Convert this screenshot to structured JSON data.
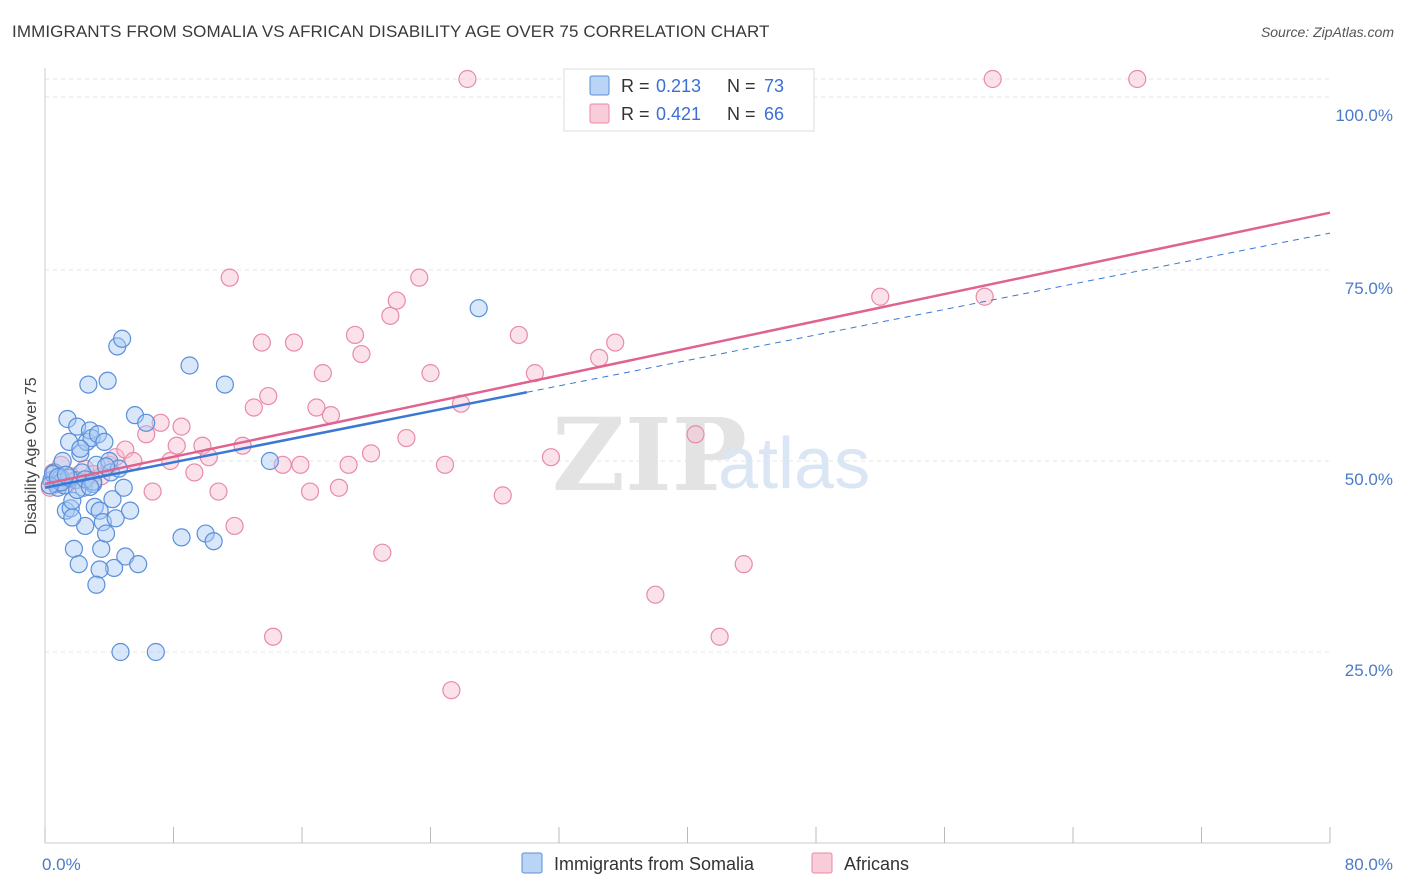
{
  "header": {
    "title": "IMMIGRANTS FROM SOMALIA VS AFRICAN DISABILITY AGE OVER 75 CORRELATION CHART",
    "source": "Source: ZipAtlas.com"
  },
  "watermark": {
    "zip": "ZIP",
    "atlas": "atlas"
  },
  "colors": {
    "somalia_fill": "#a9c9f3",
    "somalia_stroke": "#5b8fd9",
    "somalia_line": "#3b78d4",
    "africans_fill": "#f7bfd1",
    "africans_stroke": "#e88aa9",
    "africans_line": "#e0628f",
    "tick_text": "#4a7bc8",
    "grid": "#e4e4e4"
  },
  "legend": {
    "rows": [
      {
        "r_label": "R =",
        "r_value": "0.213",
        "n_label": "N =",
        "n_value": "73"
      },
      {
        "r_label": "R =",
        "r_value": "0.421",
        "n_label": "N =",
        "n_value": "66"
      }
    ]
  },
  "bottom_legend": [
    "Immigrants from Somalia",
    "Africans"
  ],
  "chart_data": {
    "type": "scatter",
    "title": "IMMIGRANTS FROM SOMALIA VS AFRICAN DISABILITY AGE OVER 75 CORRELATION CHART",
    "xlabel": "",
    "ylabel": "Disability Age Over 75",
    "xlim": [
      0,
      80
    ],
    "ylim": [
      0,
      100
    ],
    "x_tick_labels": [
      "0.0%",
      "80.0%"
    ],
    "y_ticks": [
      25,
      50,
      75,
      100
    ],
    "y_tick_labels": [
      "25.0%",
      "50.0%",
      "75.0%",
      "100.0%"
    ],
    "grid": true,
    "legend_position": "top-center",
    "series": [
      {
        "name": "Immigrants from Somalia",
        "r": 0.213,
        "n": 73,
        "trend": {
          "x": [
            0,
            30
          ],
          "y": [
            46.5,
            59.0
          ]
        },
        "points": [
          [
            0.4,
            47.5
          ],
          [
            0.6,
            48.5
          ],
          [
            0.7,
            47.0
          ],
          [
            0.8,
            46.5
          ],
          [
            0.9,
            48.0
          ],
          [
            1.0,
            47.8
          ],
          [
            1.1,
            50.0
          ],
          [
            1.2,
            46.8
          ],
          [
            1.3,
            43.5
          ],
          [
            1.4,
            55.5
          ],
          [
            1.5,
            52.5
          ],
          [
            1.6,
            43.8
          ],
          [
            1.7,
            44.8
          ],
          [
            1.8,
            38.5
          ],
          [
            1.9,
            47.5
          ],
          [
            2.0,
            54.5
          ],
          [
            2.1,
            36.5
          ],
          [
            2.2,
            51.0
          ],
          [
            2.3,
            48.5
          ],
          [
            2.4,
            46.5
          ],
          [
            2.5,
            41.5
          ],
          [
            2.6,
            52.5
          ],
          [
            2.7,
            60.0
          ],
          [
            2.8,
            54.0
          ],
          [
            2.9,
            53.0
          ],
          [
            3.0,
            47.0
          ],
          [
            3.1,
            44.0
          ],
          [
            3.2,
            49.5
          ],
          [
            3.3,
            53.5
          ],
          [
            3.4,
            43.5
          ],
          [
            3.5,
            38.5
          ],
          [
            3.6,
            42.0
          ],
          [
            3.7,
            52.5
          ],
          [
            3.8,
            40.5
          ],
          [
            3.9,
            60.5
          ],
          [
            4.0,
            50.0
          ],
          [
            4.1,
            48.5
          ],
          [
            4.2,
            45.0
          ],
          [
            4.3,
            36.0
          ],
          [
            4.4,
            42.5
          ],
          [
            4.5,
            65.0
          ],
          [
            4.6,
            49.0
          ],
          [
            4.7,
            25.0
          ],
          [
            4.8,
            66.0
          ],
          [
            4.9,
            46.5
          ],
          [
            5.0,
            37.5
          ],
          [
            5.3,
            43.5
          ],
          [
            5.6,
            56.0
          ],
          [
            5.8,
            36.5
          ],
          [
            6.3,
            55.0
          ],
          [
            6.9,
            25.0
          ],
          [
            8.5,
            40.0
          ],
          [
            9.0,
            62.5
          ],
          [
            10.0,
            40.5
          ],
          [
            10.5,
            39.5
          ],
          [
            11.2,
            60.0
          ],
          [
            14.0,
            50.0
          ],
          [
            27.0,
            70.0
          ],
          [
            0.5,
            48.3
          ],
          [
            1.0,
            47.2
          ],
          [
            1.5,
            47.8
          ],
          [
            2.0,
            46.2
          ],
          [
            2.5,
            47.6
          ],
          [
            3.0,
            47.3
          ],
          [
            0.3,
            46.8
          ],
          [
            0.8,
            47.9
          ],
          [
            1.3,
            48.2
          ],
          [
            2.2,
            51.6
          ],
          [
            3.4,
            35.8
          ],
          [
            3.2,
            33.8
          ],
          [
            2.8,
            46.6
          ],
          [
            1.7,
            42.6
          ],
          [
            3.8,
            49.3
          ]
        ]
      },
      {
        "name": "Africans",
        "r": 0.421,
        "n": 66,
        "trend": {
          "x": [
            0,
            80
          ],
          "y": [
            47.0,
            82.5
          ]
        },
        "points": [
          [
            0.3,
            46.5
          ],
          [
            0.5,
            48.5
          ],
          [
            0.8,
            47.0
          ],
          [
            1.0,
            49.5
          ],
          [
            1.3,
            46.8
          ],
          [
            1.6,
            48.0
          ],
          [
            2.0,
            47.5
          ],
          [
            2.5,
            49.0
          ],
          [
            3.0,
            48.3
          ],
          [
            3.5,
            48.0
          ],
          [
            4.0,
            49.5
          ],
          [
            4.4,
            50.5
          ],
          [
            5.0,
            51.5
          ],
          [
            5.5,
            50.0
          ],
          [
            6.3,
            53.5
          ],
          [
            6.7,
            46.0
          ],
          [
            7.2,
            55.0
          ],
          [
            7.8,
            50.0
          ],
          [
            8.2,
            52.0
          ],
          [
            8.5,
            54.5
          ],
          [
            9.3,
            48.5
          ],
          [
            9.8,
            52.0
          ],
          [
            10.2,
            50.5
          ],
          [
            10.8,
            46.0
          ],
          [
            11.5,
            74.0
          ],
          [
            11.8,
            41.5
          ],
          [
            12.3,
            52.0
          ],
          [
            13.0,
            57.0
          ],
          [
            13.5,
            65.5
          ],
          [
            13.9,
            58.5
          ],
          [
            14.2,
            27.0
          ],
          [
            14.8,
            49.5
          ],
          [
            15.5,
            65.5
          ],
          [
            15.9,
            49.5
          ],
          [
            16.5,
            46.0
          ],
          [
            16.9,
            57.0
          ],
          [
            17.3,
            61.5
          ],
          [
            17.8,
            56.0
          ],
          [
            18.3,
            46.5
          ],
          [
            18.9,
            49.5
          ],
          [
            19.3,
            66.5
          ],
          [
            19.7,
            64.0
          ],
          [
            20.3,
            51.0
          ],
          [
            21.0,
            38.0
          ],
          [
            21.5,
            69.0
          ],
          [
            21.9,
            71.0
          ],
          [
            22.5,
            53.0
          ],
          [
            23.3,
            74.0
          ],
          [
            24.0,
            61.5
          ],
          [
            24.9,
            49.5
          ],
          [
            25.3,
            20.0
          ],
          [
            25.9,
            57.5
          ],
          [
            26.3,
            100.0
          ],
          [
            28.5,
            45.5
          ],
          [
            29.5,
            66.5
          ],
          [
            30.5,
            61.5
          ],
          [
            31.5,
            50.5
          ],
          [
            33.0,
            100.0
          ],
          [
            34.5,
            63.5
          ],
          [
            35.5,
            65.5
          ],
          [
            38.0,
            32.5
          ],
          [
            40.5,
            53.5
          ],
          [
            42.0,
            27.0
          ],
          [
            43.5,
            36.5
          ],
          [
            52.0,
            71.5
          ],
          [
            58.5,
            71.5
          ]
        ]
      }
    ],
    "extra_points_africans": [
      [
        59.0,
        100.0
      ],
      [
        68.0,
        100.0
      ]
    ]
  }
}
